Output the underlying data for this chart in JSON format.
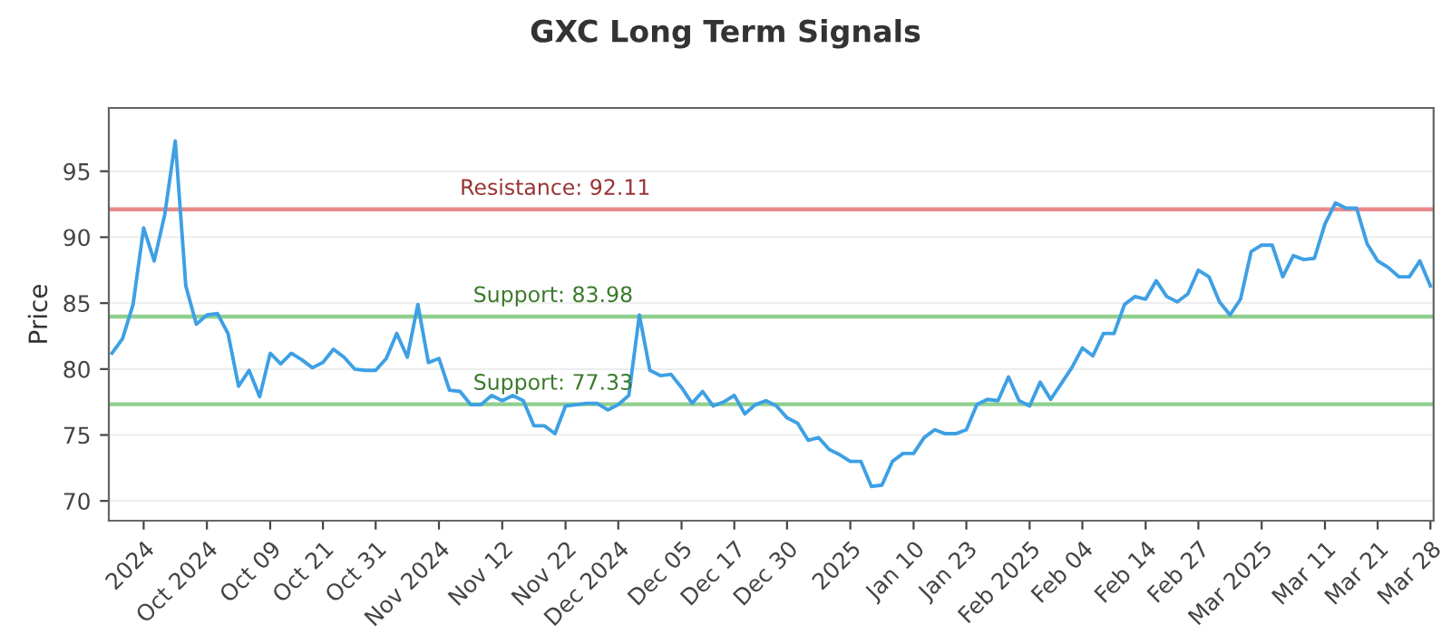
{
  "chart_data": {
    "type": "line",
    "title": "GXC Long Term Signals",
    "ylabel": "Price",
    "categories": [
      null,
      null,
      null,
      "2024",
      null,
      null,
      null,
      null,
      null,
      "Oct 2024",
      null,
      null,
      null,
      null,
      null,
      "Oct 09",
      null,
      null,
      null,
      null,
      "Oct 21",
      null,
      null,
      null,
      null,
      "Oct 31",
      null,
      null,
      null,
      null,
      null,
      "Nov 2024",
      null,
      null,
      null,
      null,
      null,
      "Nov 12",
      null,
      null,
      null,
      null,
      null,
      "Nov 22",
      null,
      null,
      null,
      null,
      "Dec 2024",
      null,
      null,
      null,
      null,
      null,
      "Dec 05",
      null,
      null,
      null,
      null,
      "Dec 17",
      null,
      null,
      null,
      null,
      "Dec 30",
      null,
      null,
      null,
      null,
      null,
      "2025",
      null,
      null,
      null,
      null,
      null,
      "Jan 10",
      null,
      null,
      null,
      null,
      "Jan 23",
      null,
      null,
      null,
      null,
      null,
      "Feb 2025",
      null,
      null,
      null,
      null,
      "Feb 04",
      null,
      null,
      null,
      null,
      null,
      "Feb 14",
      null,
      null,
      null,
      null,
      "Feb 27",
      null,
      null,
      null,
      null,
      null,
      "Mar 2025",
      null,
      null,
      null,
      null,
      null,
      "Mar 11",
      null,
      null,
      null,
      null,
      "Mar 21",
      null,
      null,
      null,
      null,
      "Mar 28"
    ],
    "series": [
      {
        "color": "#3ea0e4",
        "values": [
          81.2,
          82.3,
          84.9,
          90.7,
          88.2,
          91.7,
          97.3,
          86.3,
          83.4,
          84.1,
          84.2,
          82.7,
          78.7,
          79.9,
          77.9,
          81.2,
          80.4,
          81.2,
          80.7,
          80.1,
          80.5,
          81.5,
          80.9,
          80.0,
          79.9,
          79.9,
          80.8,
          82.7,
          80.9,
          84.9,
          80.5,
          80.8,
          78.4,
          78.3,
          77.3,
          77.3,
          78.0,
          77.6,
          78.0,
          77.6,
          75.7,
          75.7,
          75.1,
          77.2,
          77.3,
          77.4,
          77.4,
          76.9,
          77.3,
          78.0,
          84.1,
          79.9,
          79.5,
          79.6,
          78.6,
          77.4,
          78.3,
          77.2,
          77.5,
          78.0,
          76.6,
          77.3,
          77.6,
          77.2,
          76.3,
          75.9,
          74.6,
          74.8,
          73.9,
          73.5,
          73.0,
          73.0,
          71.1,
          71.2,
          73.0,
          73.6,
          73.6,
          74.8,
          75.4,
          75.1,
          75.1,
          75.4,
          77.3,
          77.7,
          77.6,
          79.4,
          77.6,
          77.2,
          79.0,
          77.7,
          78.9,
          80.1,
          81.6,
          81.0,
          82.7,
          82.7,
          84.9,
          85.5,
          85.3,
          86.7,
          85.5,
          85.1,
          85.7,
          87.5,
          87.0,
          85.1,
          84.1,
          85.3,
          88.9,
          89.4,
          89.4,
          87.0,
          88.6,
          88.3,
          88.4,
          91.0,
          92.6,
          92.2,
          92.2,
          89.5,
          88.2,
          87.7,
          87.0,
          87.0,
          88.2,
          86.3
        ]
      }
    ],
    "ylim": [
      68.5,
      99.8
    ],
    "yticks": [
      70,
      75,
      80,
      85,
      90,
      95
    ],
    "grid": "y",
    "ref_lines": [
      {
        "axis": "y",
        "value": 92.11,
        "label": "Resistance: 92.11",
        "color": "#e88a8a"
      },
      {
        "axis": "y",
        "value": 83.98,
        "label": "Support: 83.98",
        "color": "#8fcf8f"
      },
      {
        "axis": "y",
        "value": 77.33,
        "label": "Support: 77.33",
        "color": "#8fcf8f"
      }
    ]
  }
}
